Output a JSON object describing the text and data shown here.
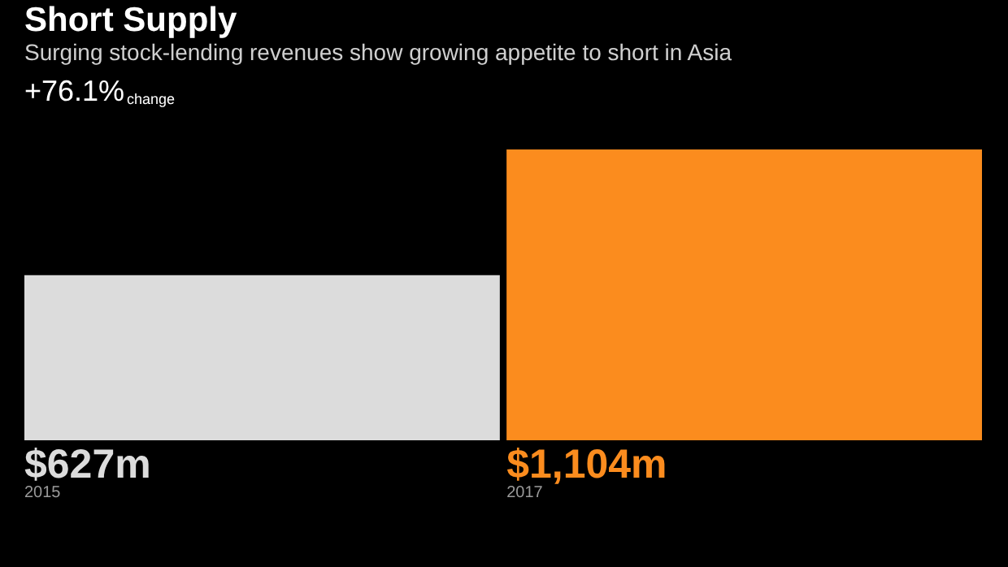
{
  "chart_data": {
    "type": "bar",
    "title": "Short Supply",
    "subtitle": "Surging stock-lending revenues show growing appetite to short in Asia",
    "annotations": [
      "+76.1%",
      "change"
    ],
    "categories": [
      "2015",
      "2017"
    ],
    "values": [
      627,
      1104
    ],
    "colors": [
      "#dcdcdc",
      "#fb8c1e"
    ],
    "value_labels": [
      "$627m",
      "$1,104m"
    ]
  }
}
